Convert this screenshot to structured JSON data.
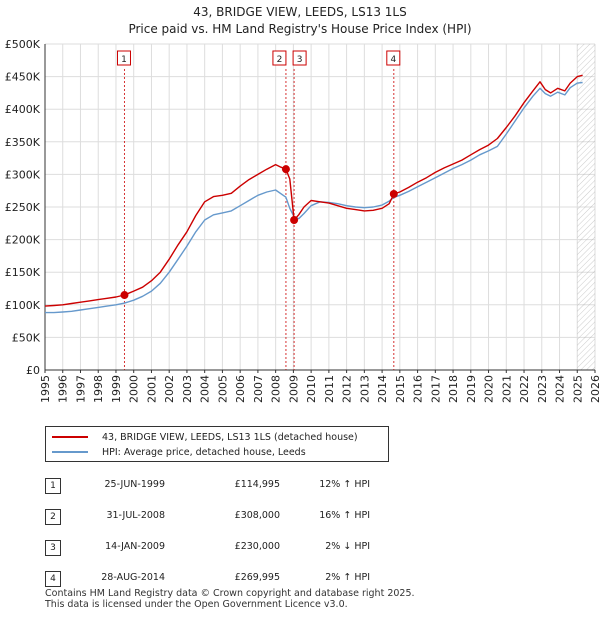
{
  "chart_data": {
    "type": "line",
    "title": "43, BRIDGE VIEW, LEEDS, LS13 1LS",
    "subtitle": "Price paid vs. HM Land Registry's House Price Index (HPI)",
    "xlim": [
      1995,
      2026
    ],
    "ylim": [
      0,
      500000
    ],
    "y_ticks": [
      0,
      50000,
      100000,
      150000,
      200000,
      250000,
      300000,
      350000,
      400000,
      450000,
      500000
    ],
    "y_tick_labels": [
      "£0",
      "£50K",
      "£100K",
      "£150K",
      "£200K",
      "£250K",
      "£300K",
      "£350K",
      "£400K",
      "£450K",
      "£500K"
    ],
    "x_ticks": [
      1995,
      1996,
      1997,
      1998,
      1999,
      2000,
      2001,
      2002,
      2003,
      2004,
      2005,
      2006,
      2007,
      2008,
      2009,
      2010,
      2011,
      2012,
      2013,
      2014,
      2015,
      2016,
      2017,
      2018,
      2019,
      2020,
      2021,
      2022,
      2023,
      2024,
      2025,
      2026
    ],
    "x_tick_labels": [
      "1995",
      "1996",
      "1997",
      "1998",
      "1999",
      "2000",
      "2001",
      "2002",
      "2003",
      "2004",
      "2005",
      "2006",
      "2007",
      "2008",
      "2009",
      "2010",
      "2011",
      "2012",
      "2013",
      "2014",
      "2015",
      "2016",
      "2017",
      "2018",
      "2019",
      "2020",
      "2021",
      "2022",
      "2023",
      "2024",
      "2025",
      "2026"
    ],
    "grid": true,
    "future_hatch_from": 2025.0,
    "series": [
      {
        "name": "43, BRIDGE VIEW, LEEDS, LS13 1LS (detached house)",
        "color": "#cc0000",
        "x": [
          1995.0,
          1995.5,
          1996.0,
          1996.5,
          1997.0,
          1997.5,
          1998.0,
          1998.5,
          1999.0,
          1999.48,
          2000.0,
          2000.5,
          2001.0,
          2001.5,
          2002.0,
          2002.5,
          2003.0,
          2003.5,
          2004.0,
          2004.5,
          2005.0,
          2005.5,
          2006.0,
          2006.5,
          2007.0,
          2007.5,
          2008.0,
          2008.3,
          2008.58,
          2008.8,
          2009.04,
          2009.3,
          2009.6,
          2010.0,
          2010.5,
          2011.0,
          2011.5,
          2012.0,
          2012.5,
          2013.0,
          2013.5,
          2014.0,
          2014.4,
          2014.66,
          2015.0,
          2015.5,
          2016.0,
          2016.5,
          2017.0,
          2017.5,
          2018.0,
          2018.5,
          2019.0,
          2019.5,
          2020.0,
          2020.5,
          2021.0,
          2021.5,
          2022.0,
          2022.5,
          2022.9,
          2023.2,
          2023.5,
          2023.9,
          2024.3,
          2024.6,
          2025.0,
          2025.3
        ],
        "values": [
          98000,
          99000,
          100000,
          102000,
          104000,
          106000,
          108000,
          110000,
          112000,
          114995,
          121000,
          127000,
          137000,
          150000,
          170000,
          192000,
          212000,
          237000,
          258000,
          266000,
          268000,
          271000,
          282000,
          292000,
          300000,
          308000,
          315000,
          311000,
          308000,
          293000,
          230000,
          238000,
          250000,
          260000,
          258000,
          256000,
          252000,
          248000,
          246000,
          244000,
          245000,
          248000,
          255000,
          269995,
          273000,
          280000,
          288000,
          295000,
          303000,
          310000,
          316000,
          322000,
          330000,
          338000,
          345000,
          355000,
          372000,
          390000,
          410000,
          428000,
          442000,
          430000,
          425000,
          432000,
          428000,
          440000,
          450000,
          452000
        ]
      },
      {
        "name": "HPI: Average price, detached house, Leeds",
        "color": "#6699cc",
        "x": [
          1995.0,
          1995.5,
          1996.0,
          1996.5,
          1997.0,
          1997.5,
          1998.0,
          1998.5,
          1999.0,
          1999.48,
          2000.0,
          2000.5,
          2001.0,
          2001.5,
          2002.0,
          2002.5,
          2003.0,
          2003.5,
          2004.0,
          2004.5,
          2005.0,
          2005.5,
          2006.0,
          2006.5,
          2007.0,
          2007.5,
          2008.0,
          2008.58,
          2008.8,
          2009.04,
          2009.3,
          2009.6,
          2010.0,
          2010.5,
          2011.0,
          2011.5,
          2012.0,
          2012.5,
          2013.0,
          2013.5,
          2014.0,
          2014.4,
          2014.66,
          2015.0,
          2015.5,
          2016.0,
          2016.5,
          2017.0,
          2017.5,
          2018.0,
          2018.5,
          2019.0,
          2019.5,
          2020.0,
          2020.5,
          2021.0,
          2021.5,
          2022.0,
          2022.5,
          2022.9,
          2023.2,
          2023.5,
          2023.9,
          2024.3,
          2024.6,
          2025.0,
          2025.3
        ],
        "values": [
          88000,
          88000,
          89000,
          90000,
          92000,
          94000,
          96000,
          98000,
          100000,
          102600,
          107000,
          113000,
          121000,
          133000,
          150000,
          170000,
          190000,
          212000,
          230000,
          238000,
          241000,
          244000,
          252000,
          260000,
          268000,
          273000,
          276000,
          265000,
          248000,
          235000,
          232000,
          240000,
          252000,
          258000,
          257000,
          255000,
          252000,
          250000,
          249000,
          250000,
          253000,
          259000,
          264600,
          268000,
          274000,
          281000,
          288000,
          295000,
          302000,
          309000,
          315000,
          322000,
          330000,
          336000,
          343000,
          362000,
          382000,
          402000,
          420000,
          432000,
          424000,
          420000,
          426000,
          422000,
          433000,
          440000,
          441000
        ]
      }
    ],
    "sales": [
      {
        "label": "1",
        "year": 1999.48,
        "price": 114995
      },
      {
        "label": "2",
        "year": 2008.58,
        "price": 308000
      },
      {
        "label": "3",
        "year": 2009.04,
        "price": 230000
      },
      {
        "label": "4",
        "year": 2014.66,
        "price": 269995
      }
    ]
  },
  "title": "43, BRIDGE VIEW, LEEDS, LS13 1LS",
  "subtitle": "Price paid vs. HM Land Registry's House Price Index (HPI)",
  "legend": {
    "property_label": "43, BRIDGE VIEW, LEEDS, LS13 1LS (detached house)",
    "hpi_label": "HPI: Average price, detached house, Leeds",
    "property_color": "#cc0000",
    "hpi_color": "#6699cc"
  },
  "sales_table": [
    {
      "num": "1",
      "date": "25-JUN-1999",
      "price": "£114,995",
      "hpi": "12% ↑ HPI"
    },
    {
      "num": "2",
      "date": "31-JUL-2008",
      "price": "£308,000",
      "hpi": "16% ↑ HPI"
    },
    {
      "num": "3",
      "date": "14-JAN-2009",
      "price": "£230,000",
      "hpi": "2% ↓ HPI"
    },
    {
      "num": "4",
      "date": "28-AUG-2014",
      "price": "£269,995",
      "hpi": "2% ↑ HPI"
    }
  ],
  "footer": {
    "line1": "Contains HM Land Registry data © Crown copyright and database right 2025.",
    "line2": "This data is licensed under the Open Government Licence v3.0."
  }
}
